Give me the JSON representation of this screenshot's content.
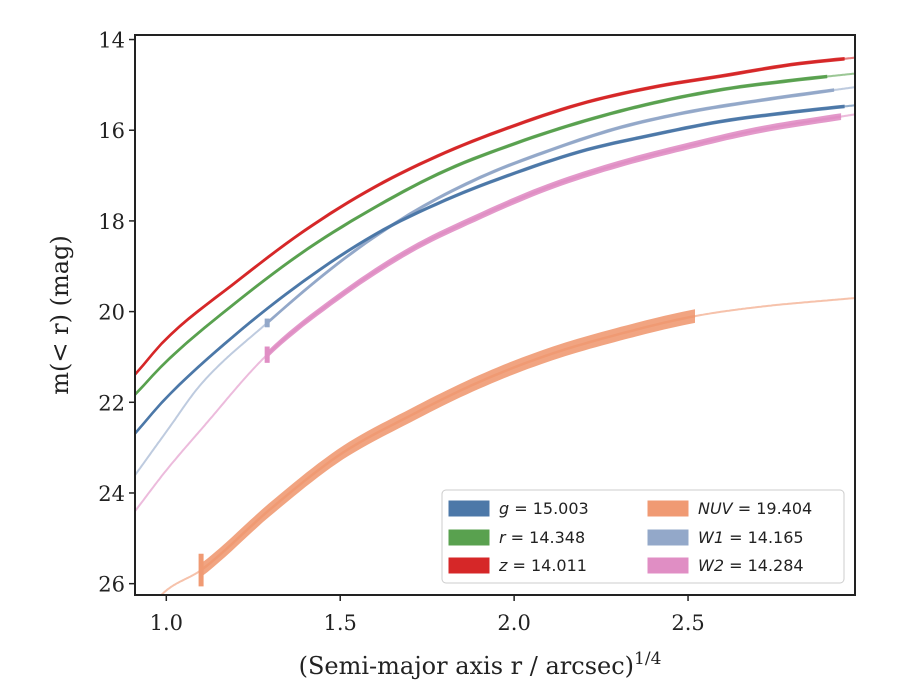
{
  "chart_data": {
    "type": "line",
    "xlabel": "(Semi-major axis r / arcsec)",
    "xlabel_exponent": "1/4",
    "ylabel": "m(< r) (mag)",
    "xlim": [
      0.91,
      2.98
    ],
    "ylim": [
      26.25,
      13.9
    ],
    "y_inverted": true,
    "x_ticks": [
      1.0,
      1.5,
      2.0,
      2.5
    ],
    "x_tick_labels": [
      "1.0",
      "1.5",
      "2.0",
      "2.5"
    ],
    "y_ticks": [
      14,
      16,
      18,
      20,
      22,
      24,
      26
    ],
    "y_tick_labels": [
      "14",
      "16",
      "18",
      "20",
      "22",
      "24",
      "26"
    ],
    "grid": false,
    "legend_position": "lower-right",
    "legend_columns": 2,
    "series": [
      {
        "name": "g = 15.003",
        "band": "g",
        "value": "15.003",
        "color": "#4c78a8",
        "band_width": 0.08,
        "fit_start": 2.95,
        "x": [
          0.92,
          1.0,
          1.2,
          1.4,
          1.6,
          1.8,
          2.0,
          2.2,
          2.4,
          2.6,
          2.8,
          2.98
        ],
        "y": [
          22.6,
          21.9,
          20.5,
          19.3,
          18.3,
          17.55,
          16.95,
          16.45,
          16.1,
          15.8,
          15.6,
          15.45
        ]
      },
      {
        "name": "r = 14.348",
        "band": "r",
        "value": "14.348",
        "color": "#59a14f",
        "band_width": 0.08,
        "fit_start": 2.9,
        "x": [
          0.92,
          1.0,
          1.2,
          1.4,
          1.6,
          1.8,
          2.0,
          2.2,
          2.4,
          2.6,
          2.8,
          2.98
        ],
        "y": [
          21.75,
          21.1,
          19.8,
          18.65,
          17.7,
          16.9,
          16.3,
          15.8,
          15.4,
          15.1,
          14.9,
          14.75
        ]
      },
      {
        "name": "z = 14.011",
        "band": "z",
        "value": "14.011",
        "color": "#d62728",
        "band_width": 0.08,
        "fit_start": 2.95,
        "x": [
          0.92,
          1.0,
          1.2,
          1.4,
          1.6,
          1.8,
          2.0,
          2.2,
          2.4,
          2.6,
          2.8,
          2.98
        ],
        "y": [
          21.3,
          20.6,
          19.35,
          18.2,
          17.25,
          16.5,
          15.9,
          15.4,
          15.05,
          14.8,
          14.55,
          14.4
        ]
      },
      {
        "name": "NUV = 19.404",
        "band": "NUV",
        "value": "19.404",
        "color": "#f09a73",
        "band_width": 0.3,
        "data_start": 1.1,
        "fit_start": 2.52,
        "x": [
          0.92,
          1.0,
          1.1,
          1.3,
          1.5,
          1.7,
          1.9,
          2.1,
          2.3,
          2.52,
          2.7,
          2.98
        ],
        "y": [
          26.8,
          26.15,
          25.7,
          24.35,
          23.15,
          22.3,
          21.55,
          20.95,
          20.5,
          20.1,
          19.9,
          19.7
        ]
      },
      {
        "name": "W1 = 14.165",
        "band": "W1",
        "value": "14.165",
        "color": "#93a8c9",
        "band_width": 0.08,
        "data_start": 1.29,
        "fit_start": 2.92,
        "x": [
          0.92,
          1.0,
          1.1,
          1.29,
          1.5,
          1.7,
          1.9,
          2.1,
          2.3,
          2.5,
          2.7,
          2.98
        ],
        "y": [
          23.5,
          22.65,
          21.6,
          20.25,
          18.9,
          17.85,
          17.05,
          16.45,
          15.95,
          15.6,
          15.35,
          15.05
        ]
      },
      {
        "name": "W2 = 14.284",
        "band": "W2",
        "value": "14.284",
        "color": "#e08ec4",
        "band_width": 0.15,
        "data_start": 1.29,
        "fit_start": 2.94,
        "x": [
          0.92,
          1.0,
          1.1,
          1.29,
          1.5,
          1.7,
          1.9,
          2.1,
          2.3,
          2.5,
          2.7,
          2.98
        ],
        "y": [
          24.3,
          23.5,
          22.6,
          20.95,
          19.65,
          18.65,
          17.9,
          17.25,
          16.75,
          16.35,
          16.0,
          15.65
        ]
      }
    ]
  }
}
